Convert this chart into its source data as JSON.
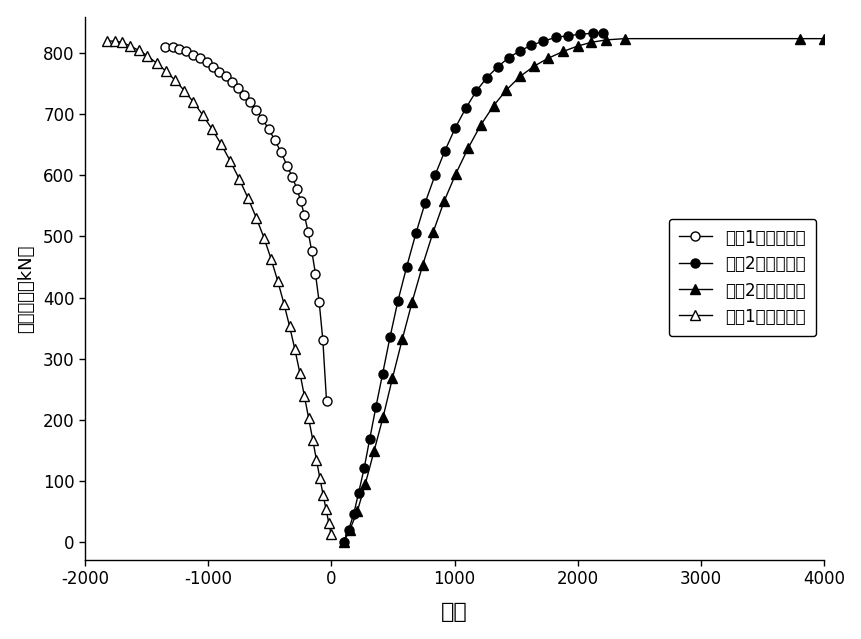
{
  "xlabel": "应变",
  "ylabel": "支管荷载（kN）",
  "xlim": [
    -2000,
    4000
  ],
  "ylim": [
    -30,
    860
  ],
  "xticks": [
    -2000,
    -1000,
    0,
    1000,
    2000,
    3000,
    4000
  ],
  "yticks": [
    0,
    100,
    200,
    300,
    400,
    500,
    600,
    700,
    800
  ],
  "legend_labels": [
    "钢管1号位置轴向",
    "钢管2号位置轴向",
    "钢管2号位置环向",
    "钢管1号位置环向"
  ],
  "s1_x": [
    -1350,
    -1290,
    -1240,
    -1180,
    -1120,
    -1070,
    -1010,
    -960,
    -910,
    -860,
    -810,
    -760,
    -710,
    -660,
    -610,
    -560,
    -510,
    -460,
    -410,
    -360,
    -320,
    -280,
    -250,
    -220,
    -190,
    -160,
    -130,
    -100,
    -70,
    -40
  ],
  "s1_y": [
    810,
    810,
    807,
    803,
    798,
    793,
    785,
    778,
    770,
    762,
    753,
    743,
    732,
    720,
    707,
    692,
    676,
    658,
    638,
    616,
    598,
    578,
    558,
    535,
    508,
    476,
    439,
    393,
    330,
    230
  ],
  "s2_x": [
    100,
    140,
    180,
    220,
    265,
    310,
    360,
    415,
    475,
    540,
    610,
    685,
    760,
    840,
    920,
    1005,
    1090,
    1175,
    1260,
    1350,
    1440,
    1530,
    1620,
    1720,
    1820,
    1920,
    2020,
    2120,
    2200
  ],
  "s2_y": [
    0,
    20,
    45,
    80,
    120,
    168,
    220,
    275,
    335,
    395,
    450,
    505,
    555,
    600,
    640,
    678,
    710,
    738,
    760,
    778,
    793,
    804,
    813,
    820,
    826,
    829,
    831,
    833,
    834
  ],
  "s3_x": [
    100,
    150,
    210,
    275,
    345,
    420,
    495,
    575,
    655,
    740,
    825,
    915,
    1010,
    1110,
    1210,
    1315,
    1420,
    1530,
    1645,
    1760,
    1880,
    2000,
    2110,
    2230,
    2380,
    3800,
    4000
  ],
  "s3_y": [
    0,
    20,
    50,
    95,
    148,
    205,
    268,
    332,
    393,
    453,
    507,
    558,
    603,
    645,
    682,
    714,
    740,
    762,
    779,
    792,
    803,
    812,
    818,
    822,
    824,
    824,
    824
  ],
  "s4_x": [
    -1820,
    -1760,
    -1700,
    -1635,
    -1565,
    -1495,
    -1420,
    -1345,
    -1270,
    -1195,
    -1120,
    -1045,
    -970,
    -895,
    -820,
    -748,
    -678,
    -611,
    -548,
    -490,
    -436,
    -386,
    -340,
    -297,
    -257,
    -220,
    -185,
    -152,
    -122,
    -94,
    -68,
    -44,
    -22,
    -4
  ],
  "s4_y": [
    820,
    820,
    818,
    812,
    805,
    796,
    784,
    771,
    756,
    739,
    720,
    699,
    676,
    651,
    623,
    594,
    563,
    531,
    498,
    463,
    427,
    390,
    353,
    315,
    277,
    239,
    202,
    167,
    134,
    104,
    77,
    53,
    31,
    13
  ],
  "background_color": "#ffffff"
}
